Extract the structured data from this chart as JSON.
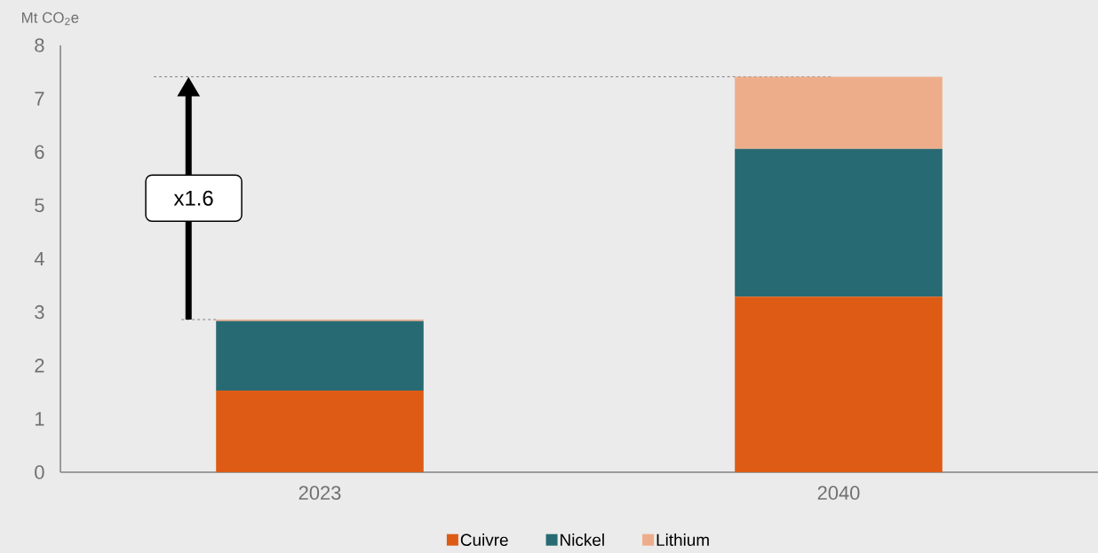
{
  "chart_data": {
    "type": "bar",
    "stacked": true,
    "ylabel": "Mt CO$_{2}$e",
    "categories": [
      "2023",
      "2040"
    ],
    "series": [
      {
        "name": "Cuivre",
        "color": "#de5b16",
        "values": [
          1.53,
          3.29
        ]
      },
      {
        "name": "Nickel",
        "color": "#286a73",
        "values": [
          1.3,
          2.77
        ]
      },
      {
        "name": "Lithium",
        "color": "#eead8a",
        "values": [
          0.03,
          1.35
        ]
      }
    ],
    "ref_lines": [
      {
        "axis": "y",
        "value": 7.41,
        "color": "#808080",
        "line_style": "dashed"
      }
    ],
    "ylim": [
      0,
      8
    ],
    "yticks": [
      0,
      1,
      2,
      3,
      4,
      5,
      6,
      7,
      8
    ],
    "legend": "bottom",
    "annotations": [
      "x1.6"
    ]
  }
}
